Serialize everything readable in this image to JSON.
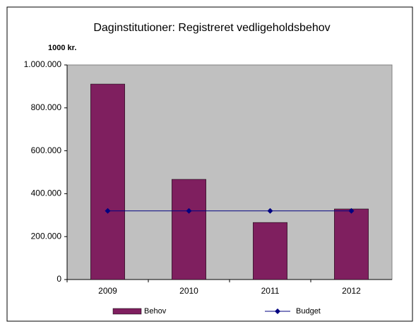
{
  "chart_data": {
    "type": "bar",
    "title": "Daginstitutioner: Registreret vedligeholdsbehov",
    "y_axis_label": "1000 kr.",
    "categories": [
      "2009",
      "2010",
      "2011",
      "2012"
    ],
    "series": [
      {
        "name": "Behov",
        "type": "bar",
        "color": "#7f1f5f",
        "values": [
          911000,
          467000,
          266000,
          329000
        ]
      },
      {
        "name": "Budget",
        "type": "line",
        "color": "#000080",
        "values": [
          320000,
          320000,
          320000,
          320000
        ]
      }
    ],
    "ylim": [
      0,
      1000000
    ],
    "yticks": [
      0,
      {
        "value": 200000,
        "label": "200.000"
      },
      {
        "value": 400000,
        "label": "400.000"
      },
      {
        "value": 600000,
        "label": "600.000"
      },
      {
        "value": 800000,
        "label": "800.000"
      },
      {
        "value": 1000000,
        "label": "1.000.000"
      }
    ],
    "plot_background": "#c0c0c0",
    "legend": "bottom"
  }
}
